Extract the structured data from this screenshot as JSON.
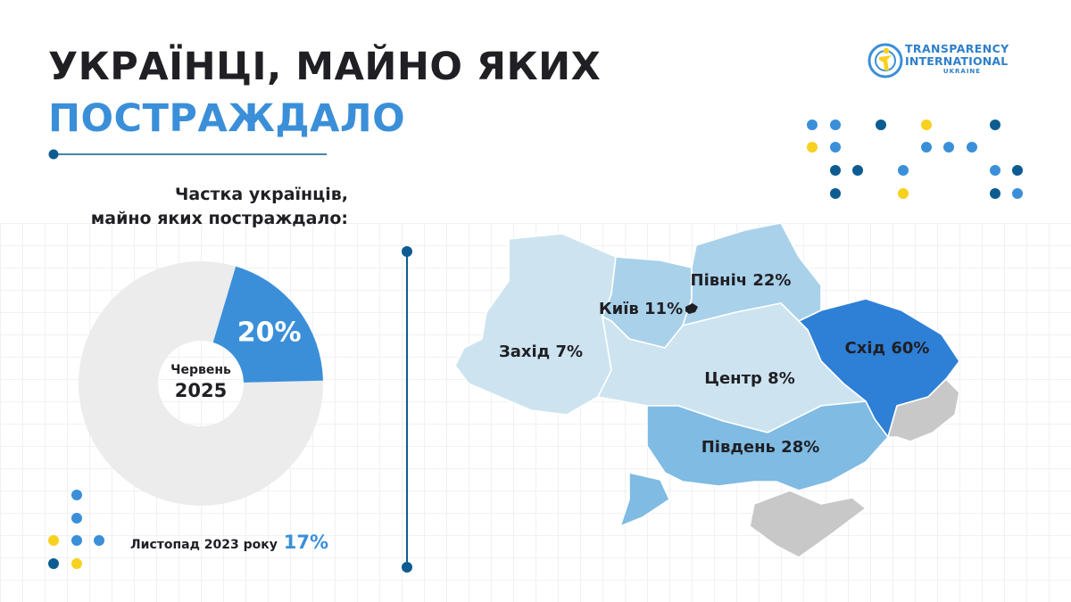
{
  "header": {
    "title_line1": "УКРАЇНЦІ, МАЙНО ЯКИХ",
    "title_line2": "ПОСТРАЖДАЛО"
  },
  "logo": {
    "line1": "TRANSPARENCY",
    "line2": "INTERNATIONAL",
    "line3": "UKRAINE"
  },
  "subtitle": {
    "line1": "Частка українців,",
    "line2": "майно яких постраждало:"
  },
  "donut": {
    "center_label_line1": "Червень",
    "center_label_line2": "2025",
    "value_label": "20%"
  },
  "previous": {
    "label": "Листопад 2023 року",
    "value_label": "17%"
  },
  "colors": {
    "accent": "#3b8fd9",
    "dark_blue": "#0d5c91",
    "yellow": "#f7d11f",
    "donut_rest": "#ececec",
    "region_low": "#cde4f0",
    "region_mid": "#a9d1ea",
    "region_south": "#7fbbe3",
    "region_east": "#2e7fd6",
    "occupied": "#c8c8c8"
  },
  "chart_data": [
    {
      "type": "pie",
      "variant": "donut",
      "categories": [
        "Червень 2025"
      ],
      "values": [
        20
      ],
      "total": 100,
      "value_labels": [
        "20%"
      ],
      "comparison": {
        "label": "Листопад 2023 року",
        "value": 17
      }
    },
    {
      "type": "heatmap",
      "variant": "choropleth",
      "categories": [
        "Захід",
        "Київ",
        "Північ",
        "Схід",
        "Центр",
        "Південь"
      ],
      "values": [
        7,
        11,
        22,
        60,
        8,
        28
      ],
      "unit": "%",
      "labels": [
        "Захід 7%",
        "Київ 11%",
        "Північ 22%",
        "Схід 60%",
        "Центр 8%",
        "Південь 28%"
      ]
    }
  ]
}
